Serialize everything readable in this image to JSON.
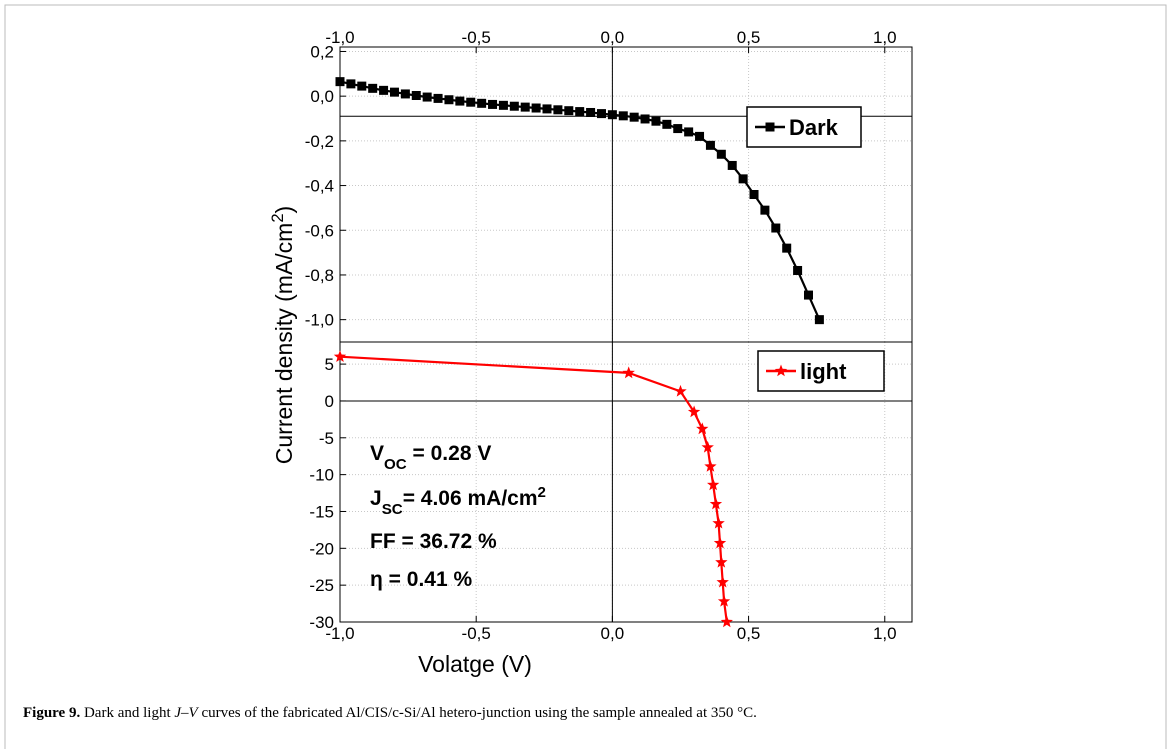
{
  "chart_data": [
    {
      "type": "line",
      "marker": "square",
      "x": [
        -1.0,
        -0.96,
        -0.92,
        -0.88,
        -0.84,
        -0.8,
        -0.76,
        -0.72,
        -0.68,
        -0.64,
        -0.6,
        -0.56,
        -0.52,
        -0.48,
        -0.44,
        -0.4,
        -0.36,
        -0.32,
        -0.28,
        -0.24,
        -0.2,
        -0.16,
        -0.12,
        -0.08,
        -0.04,
        0.0,
        0.04,
        0.08,
        0.12,
        0.16,
        0.2,
        0.24,
        0.28,
        0.32,
        0.36,
        0.4,
        0.44,
        0.48,
        0.52,
        0.56,
        0.6,
        0.64,
        0.68,
        0.72,
        0.76
      ],
      "series": [
        {
          "name": "Dark",
          "color": "#000000",
          "values": [
            0.065,
            0.055,
            0.045,
            0.035,
            0.026,
            0.018,
            0.01,
            0.003,
            -0.004,
            -0.01,
            -0.016,
            -0.022,
            -0.027,
            -0.032,
            -0.037,
            -0.041,
            -0.045,
            -0.049,
            -0.053,
            -0.057,
            -0.061,
            -0.065,
            -0.069,
            -0.073,
            -0.078,
            -0.083,
            -0.088,
            -0.094,
            -0.102,
            -0.112,
            -0.126,
            -0.145,
            -0.16,
            -0.18,
            -0.22,
            -0.26,
            -0.31,
            -0.37,
            -0.44,
            -0.51,
            -0.59,
            -0.68,
            -0.78,
            -0.89,
            -1.0
          ]
        }
      ],
      "xlim": [
        -1.0,
        1.1
      ],
      "xticks": [
        {
          "value": -1.0,
          "label": "-1,0"
        },
        {
          "value": -0.5,
          "label": "-0,5"
        },
        {
          "value": 0.0,
          "label": "0,0"
        },
        {
          "value": 0.5,
          "label": "0,5"
        },
        {
          "value": 1.0,
          "label": "1,0"
        }
      ],
      "xtick_side": "top",
      "ylim": [
        -1.1,
        0.22
      ],
      "yticks": [
        {
          "value": 0.2,
          "label": "0,2"
        },
        {
          "value": 0.0,
          "label": "0,0"
        },
        {
          "value": -0.2,
          "label": "-0,2"
        },
        {
          "value": -0.4,
          "label": "-0,4"
        },
        {
          "value": -0.6,
          "label": "-0,6"
        },
        {
          "value": -0.8,
          "label": "-0,8"
        },
        {
          "value": -1.0,
          "label": "-1,0"
        }
      ],
      "hline": -0.09,
      "vline": 0.0,
      "grid": true,
      "legend": "upper right"
    },
    {
      "type": "line",
      "marker": "star",
      "x": [
        -1.0,
        0.06,
        0.25,
        0.3,
        0.33,
        0.35,
        0.36,
        0.37,
        0.38,
        0.39,
        0.395,
        0.4,
        0.405,
        0.41,
        0.42
      ],
      "series": [
        {
          "name": "light",
          "color": "#ff0000",
          "values": [
            6.0,
            3.8,
            1.3,
            -1.5,
            -3.8,
            -6.3,
            -8.9,
            -11.4,
            -14.0,
            -16.6,
            -19.3,
            -21.9,
            -24.6,
            -27.2,
            -30.0
          ]
        }
      ],
      "xlim": [
        -1.0,
        1.1
      ],
      "xticks": [
        {
          "value": -1.0,
          "label": "-1,0"
        },
        {
          "value": -0.5,
          "label": "-0,5"
        },
        {
          "value": 0.0,
          "label": "0,0"
        },
        {
          "value": 0.5,
          "label": "0,5"
        },
        {
          "value": 1.0,
          "label": "1,0"
        }
      ],
      "xtick_side": "bottom",
      "x_label": "Volatge (V)",
      "ylim": [
        -30,
        8
      ],
      "yticks": [
        5,
        0,
        -5,
        -10,
        -15,
        -20,
        -25,
        -30
      ],
      "hline": 0,
      "vline": 0.0,
      "grid": true,
      "legend": "upper right"
    }
  ],
  "y_label": [
    {
      "text": "Current density (mA/cm"
    },
    {
      "text": "2",
      "sup": true
    },
    {
      "text": ")"
    }
  ],
  "annotations": [
    [
      {
        "text": "V"
      },
      {
        "text": "OC",
        "sub": true
      },
      {
        "text": " = 0.28 V"
      }
    ],
    [
      {
        "text": "J"
      },
      {
        "text": "SC",
        "sub": true
      },
      {
        "text": "= 4.06 mA/cm"
      },
      {
        "text": "2",
        "sup": true
      }
    ],
    [
      {
        "text": "FF = 36.72 %"
      }
    ],
    [
      {
        "text": "η =  0.41 %"
      }
    ]
  ],
  "caption": {
    "label": "Figure 9.",
    "parts": [
      {
        "text": " Dark and light "
      },
      {
        "text": "J–V",
        "italic": true
      },
      {
        "text": " curves of the fabricated Al/CIS/c-Si/Al hetero-junction using the sample annealed at 350 °C."
      }
    ]
  }
}
